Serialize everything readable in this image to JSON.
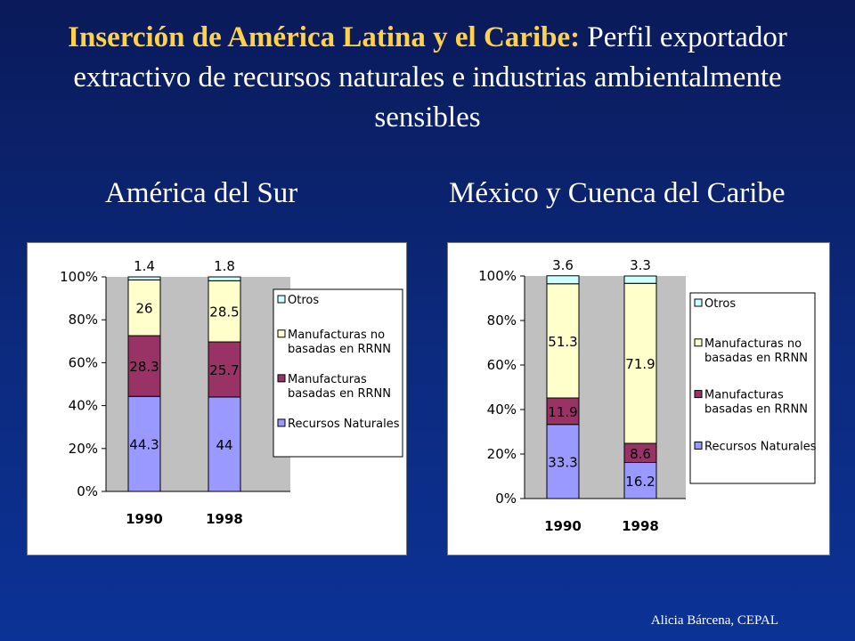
{
  "slide": {
    "title_bold": "Inserción de América Latina y el Caribe:",
    "title_rest": " Perfil exportador extractivo de recursos naturales e industrias ambientalmente sensibles",
    "footer": "Alicia Bárcena, CEPAL"
  },
  "colors": {
    "recursos": "#9999ff",
    "manuf_rrnn": "#993366",
    "manuf_no": "#ffffcc",
    "otros": "#ccffff",
    "plot_bg": "#c0c0c0"
  },
  "chart_data": [
    {
      "type": "bar",
      "stacked": true,
      "percent": true,
      "title": "América del Sur",
      "categories": [
        "1990",
        "1998"
      ],
      "yticks": [
        "0%",
        "20%",
        "40%",
        "60%",
        "80%",
        "100%"
      ],
      "ylim": [
        0,
        100
      ],
      "legend_position": "right",
      "series": [
        {
          "name": "Recursos Naturales",
          "key": "recursos",
          "values": [
            44.3,
            44
          ],
          "labels": [
            "44.3",
            "44"
          ]
        },
        {
          "name": "Manufacturas basadas en RRNN",
          "key": "manuf_rrnn",
          "values": [
            28.3,
            25.7
          ],
          "labels": [
            "28.3",
            "25.7"
          ]
        },
        {
          "name": "Manufacturas no basadas en RRNN",
          "key": "manuf_no",
          "values": [
            26,
            28.5
          ],
          "labels": [
            "26",
            "28.5"
          ]
        },
        {
          "name": "Otros",
          "key": "otros",
          "values": [
            1.4,
            1.8
          ],
          "labels": [
            "1.4",
            "1.8"
          ]
        }
      ],
      "legend": [
        {
          "key": "otros",
          "lines": [
            "Otros"
          ]
        },
        {
          "key": "manuf_no",
          "lines": [
            "Manufacturas no",
            "basadas en RRNN"
          ]
        },
        {
          "key": "manuf_rrnn",
          "lines": [
            "Manufacturas",
            "basadas en RRNN"
          ]
        },
        {
          "key": "recursos",
          "lines": [
            "Recursos Naturales"
          ]
        }
      ]
    },
    {
      "type": "bar",
      "stacked": true,
      "percent": true,
      "title": "México y Cuenca del Caribe",
      "categories": [
        "1990",
        "1998"
      ],
      "yticks": [
        "0%",
        "20%",
        "40%",
        "60%",
        "80%",
        "100%"
      ],
      "ylim": [
        0,
        100
      ],
      "legend_position": "right",
      "series": [
        {
          "name": "Recursos Naturales",
          "key": "recursos",
          "values": [
            33.3,
            16.2
          ],
          "labels": [
            "33.3",
            "16.2"
          ]
        },
        {
          "name": "Manufacturas basadas en RRNN",
          "key": "manuf_rrnn",
          "values": [
            11.9,
            8.6
          ],
          "labels": [
            "11.9",
            "8.6"
          ]
        },
        {
          "name": "Manufacturas no basadas en RRNN",
          "key": "manuf_no",
          "values": [
            51.3,
            71.9
          ],
          "labels": [
            "51.3",
            "71.9"
          ]
        },
        {
          "name": "Otros",
          "key": "otros",
          "values": [
            3.6,
            3.3
          ],
          "labels": [
            "3.6",
            "3.3"
          ]
        }
      ],
      "legend": [
        {
          "key": "otros",
          "lines": [
            "Otros"
          ]
        },
        {
          "key": "manuf_no",
          "lines": [
            "Manufacturas no",
            "basadas en RRNN"
          ]
        },
        {
          "key": "manuf_rrnn",
          "lines": [
            "Manufacturas",
            "basadas en RRNN"
          ]
        },
        {
          "key": "recursos",
          "lines": [
            "Recursos Naturales"
          ]
        }
      ]
    }
  ]
}
